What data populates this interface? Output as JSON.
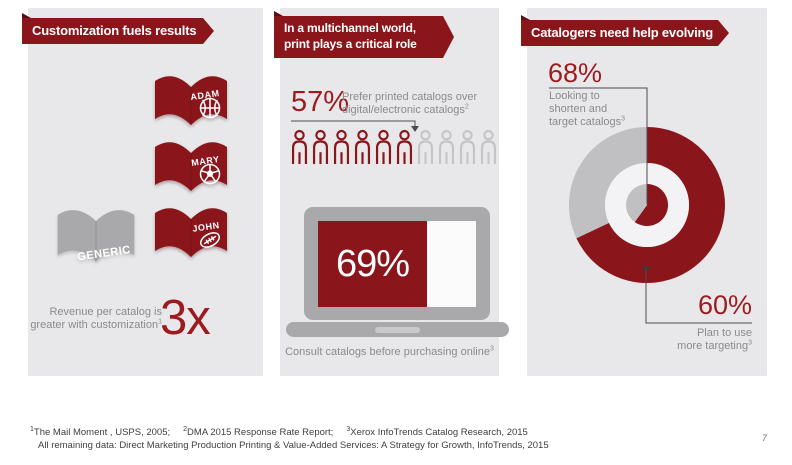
{
  "colors": {
    "accent_red": "#8a161c",
    "accent_red_dark": "#5c0d12",
    "number_red": "#9d1b1f",
    "panel_bg": "#e8e8ea",
    "shape_gray": "#a9a9ab",
    "light_gray": "#c5c5c7",
    "caption_gray": "#8b8b8d",
    "footnote_gray": "#3f3f41"
  },
  "panel1": {
    "banner": "Customization fuels results",
    "catalogs": [
      {
        "name": "ADAM",
        "icon": "basketball-icon"
      },
      {
        "name": "MARY",
        "icon": "soccer-ball-icon"
      },
      {
        "name": "JOHN",
        "icon": "football-icon"
      }
    ],
    "generic_label": "GENERIC",
    "multiplier": "3x",
    "caption_line1": "Revenue per catalog is",
    "caption_line2": "greater with customization",
    "footnote_ref": "1"
  },
  "panel2": {
    "banner_line1": "In a multichannel world,",
    "banner_line2": "print plays a critical role",
    "pictograph": {
      "value": "57%",
      "caption_line1": "Prefer printed catalogs over",
      "caption_line2": "digital/electronic catalogs",
      "footnote_ref": "2",
      "people_total": 10,
      "people_filled": 6
    },
    "laptop": {
      "value": "69%",
      "percent": 69,
      "caption": "Consult catalogs before purchasing online",
      "footnote_ref": "3"
    }
  },
  "panel3": {
    "banner": "Catalogers need help evolving",
    "outer_stat": {
      "value": "68%",
      "percent": 68,
      "caption_line1": "Looking to",
      "caption_line2": "shorten and",
      "caption_line3": "target catalogs",
      "footnote_ref": "3"
    },
    "inner_stat": {
      "value": "60%",
      "percent": 60,
      "caption_line1": "Plan to use",
      "caption_line2": "more targeting",
      "footnote_ref": "3"
    }
  },
  "footnotes": {
    "refs": [
      {
        "sup": "1",
        "text": "The Mail Moment , USPS, 2005;"
      },
      {
        "sup": "2",
        "text": "DMA 2015 Response Rate Report;"
      },
      {
        "sup": "3",
        "text": "Xerox InfoTrends Catalog Research, 2015"
      }
    ],
    "remaining": "All remaining data: Direct Marketing Production Printing & Value-Added Services: A Strategy for Growth, InfoTrends, 2015",
    "page_number": "7"
  },
  "chart_data": [
    {
      "type": "pie",
      "subtype": "pictograph",
      "title": "Prefer printed catalogs over digital/electronic catalogs",
      "value": 57,
      "unit": "%",
      "icons_total": 10,
      "icons_highlighted": 6
    },
    {
      "type": "bar",
      "subtype": "laptop-screen-fill",
      "title": "Consult catalogs before purchasing online",
      "value": 69,
      "unit": "%",
      "xlim": [
        0,
        100
      ]
    },
    {
      "type": "pie",
      "subtype": "donut-bullseye",
      "title": "Catalogers need help evolving",
      "unit": "%",
      "series": [
        {
          "name": "Looking to shorten and target catalogs",
          "ring": "outer",
          "value": 68,
          "rest": 32
        },
        {
          "name": "Plan to use more targeting",
          "ring": "inner",
          "value": 60,
          "rest": 40
        }
      ]
    },
    {
      "type": "stat",
      "title": "Revenue per catalog is greater with customization",
      "value": "3x"
    }
  ]
}
